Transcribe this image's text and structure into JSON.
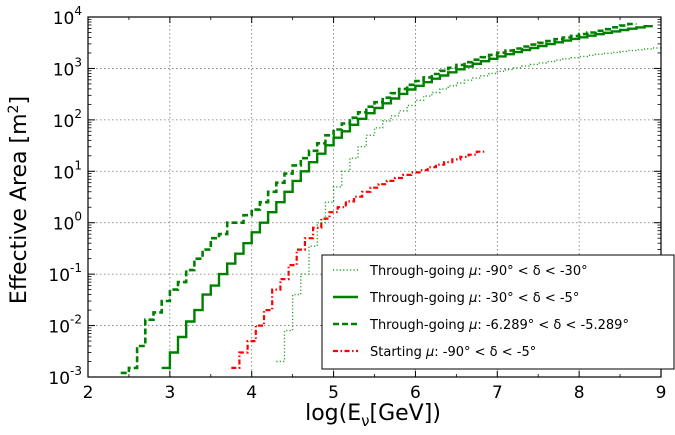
{
  "chart_data": {
    "type": "line",
    "title": "",
    "xlabel": "log(Eν[GeV])",
    "ylabel": "Effective Area [m2]",
    "xlim": [
      2,
      9
    ],
    "ylim": [
      0.001,
      10000
    ],
    "yscale": "log",
    "grid": true,
    "legend_position": "bottom-right",
    "x_ticks": [
      "2",
      "3",
      "4",
      "5",
      "6",
      "7",
      "8",
      "9"
    ],
    "y_ticks": [
      {
        "base": "10",
        "exp": "-3",
        "value": 0.001
      },
      {
        "base": "10",
        "exp": "-2",
        "value": 0.01
      },
      {
        "base": "10",
        "exp": "-1",
        "value": 0.1
      },
      {
        "base": "10",
        "exp": "0",
        "value": 1
      },
      {
        "base": "10",
        "exp": "1",
        "value": 10
      },
      {
        "base": "10",
        "exp": "2",
        "value": 100
      },
      {
        "base": "10",
        "exp": "3",
        "value": 1000
      },
      {
        "base": "10",
        "exp": "4",
        "value": 10000
      }
    ],
    "series": [
      {
        "name": "Through-going μ: -90° < δ < -30°",
        "color": "#2ca02c",
        "style": "dotted",
        "x": [
          4.35,
          4.45,
          4.55,
          4.65,
          4.75,
          4.85,
          4.95,
          5.05,
          5.15,
          5.25,
          5.35,
          5.45,
          5.55,
          5.65,
          5.75,
          5.85,
          5.95,
          6.05,
          6.15,
          6.25,
          6.35,
          6.45,
          6.55,
          6.65,
          6.75,
          6.85,
          6.95,
          7.05,
          7.15,
          7.25,
          7.35,
          7.45,
          7.55,
          7.65,
          7.75,
          7.85,
          7.95,
          8.05,
          8.15,
          8.25,
          8.35,
          8.45,
          8.55,
          8.65,
          8.75,
          8.85,
          8.95
        ],
        "y": [
          0.002,
          0.008,
          0.04,
          0.1,
          0.35,
          1.0,
          2.5,
          5,
          10,
          18,
          30,
          50,
          70,
          95,
          120,
          150,
          190,
          240,
          290,
          340,
          400,
          460,
          520,
          590,
          650,
          720,
          800,
          880,
          950,
          1030,
          1110,
          1200,
          1280,
          1360,
          1450,
          1540,
          1620,
          1710,
          1800,
          1880,
          1970,
          2050,
          2140,
          2220,
          2300,
          2400,
          2500
        ]
      },
      {
        "name": "Through-going μ: -30° < δ < -5°",
        "color": "#008000",
        "style": "solid",
        "x": [
          2.95,
          3.05,
          3.15,
          3.25,
          3.35,
          3.45,
          3.55,
          3.65,
          3.75,
          3.85,
          3.95,
          4.05,
          4.15,
          4.25,
          4.35,
          4.45,
          4.55,
          4.65,
          4.75,
          4.85,
          4.95,
          5.05,
          5.15,
          5.25,
          5.35,
          5.45,
          5.55,
          5.65,
          5.75,
          5.85,
          5.95,
          6.05,
          6.15,
          6.25,
          6.35,
          6.45,
          6.55,
          6.65,
          6.75,
          6.85,
          6.95,
          7.05,
          7.15,
          7.25,
          7.35,
          7.45,
          7.55,
          7.65,
          7.75,
          7.85,
          7.95,
          8.05,
          8.15,
          8.25,
          8.35,
          8.45,
          8.55,
          8.65,
          8.75,
          8.85
        ],
        "y": [
          0.0015,
          0.003,
          0.006,
          0.012,
          0.02,
          0.04,
          0.06,
          0.1,
          0.16,
          0.25,
          0.4,
          0.65,
          1.0,
          1.6,
          2.5,
          4,
          6.5,
          10,
          15,
          22,
          32,
          45,
          60,
          80,
          105,
          135,
          170,
          210,
          260,
          320,
          390,
          460,
          540,
          630,
          730,
          840,
          960,
          1090,
          1230,
          1380,
          1540,
          1710,
          1890,
          2080,
          2280,
          2500,
          2730,
          2970,
          3220,
          3480,
          3750,
          4030,
          4320,
          4620,
          4930,
          5250,
          5580,
          5920,
          6270,
          6630
        ]
      },
      {
        "name": "Through-going μ: -6.289° < δ < -5.289°",
        "color": "#008000",
        "style": "dashed",
        "x": [
          2.45,
          2.55,
          2.65,
          2.75,
          2.85,
          2.95,
          3.05,
          3.15,
          3.25,
          3.35,
          3.45,
          3.55,
          3.65,
          3.75,
          3.85,
          3.95,
          4.05,
          4.15,
          4.25,
          4.35,
          4.45,
          4.55,
          4.65,
          4.75,
          4.85,
          4.95,
          5.05,
          5.15,
          5.25,
          5.35,
          5.45,
          5.55,
          5.65,
          5.75,
          5.85,
          5.95,
          6.05,
          6.15,
          6.25,
          6.35,
          6.45,
          6.55,
          6.65,
          6.75,
          6.85,
          6.95,
          7.05,
          7.15,
          7.25,
          7.35,
          7.45,
          7.55,
          7.65,
          7.75,
          7.85,
          7.95,
          8.05,
          8.15,
          8.25,
          8.35,
          8.45,
          8.55,
          8.65
        ],
        "y": [
          0.0012,
          0.0015,
          0.004,
          0.013,
          0.018,
          0.03,
          0.05,
          0.07,
          0.12,
          0.2,
          0.3,
          0.5,
          0.6,
          1.0,
          1.0,
          1.4,
          1.8,
          2.5,
          4,
          6,
          9,
          13,
          18,
          25,
          35,
          50,
          65,
          85,
          110,
          140,
          180,
          220,
          270,
          330,
          400,
          480,
          570,
          670,
          780,
          900,
          1030,
          1170,
          1320,
          1480,
          1650,
          1830,
          2020,
          2220,
          2440,
          2670,
          2900,
          3150,
          3420,
          3700,
          4000,
          4300,
          4650,
          5000,
          5400,
          5800,
          6300,
          6800,
          7300
        ]
      },
      {
        "name": "Starting μ: -90° < δ < -5°",
        "color": "#ff0000",
        "style": "dashdot",
        "x": [
          3.8,
          3.9,
          4.0,
          4.1,
          4.2,
          4.3,
          4.4,
          4.5,
          4.6,
          4.7,
          4.8,
          4.9,
          5.0,
          5.1,
          5.2,
          5.3,
          5.4,
          5.5,
          5.6,
          5.7,
          5.8,
          5.9,
          6.0,
          6.1,
          6.2,
          6.3,
          6.4,
          6.5,
          6.6,
          6.7,
          6.8
        ],
        "y": [
          0.0015,
          0.003,
          0.005,
          0.01,
          0.02,
          0.05,
          0.08,
          0.15,
          0.3,
          0.5,
          0.8,
          1.2,
          1.6,
          2.0,
          2.6,
          3.2,
          4.0,
          4.8,
          5.6,
          6.5,
          7.4,
          8.5,
          9.5,
          10.5,
          12,
          13.5,
          15,
          17,
          19,
          21,
          24
        ]
      }
    ]
  },
  "legend": {
    "entries": [
      {
        "prefix": "Through-going ",
        "mu": "μ",
        "rest": ": -90° < δ < -30°"
      },
      {
        "prefix": "Through-going ",
        "mu": "μ",
        "rest": ": -30° < δ < -5°"
      },
      {
        "prefix": "Through-going ",
        "mu": "μ",
        "rest": ": -6.289° < δ < -5.289°"
      },
      {
        "prefix": "Starting ",
        "mu": "μ",
        "rest": ": -90° < δ < -5°"
      }
    ]
  },
  "axes_text": {
    "ylabel_main": "Effective Area [m",
    "ylabel_sup": "2",
    "ylabel_end": "]",
    "xlabel_main": "log(E",
    "xlabel_sub": "ν",
    "xlabel_end": "[GeV])"
  }
}
